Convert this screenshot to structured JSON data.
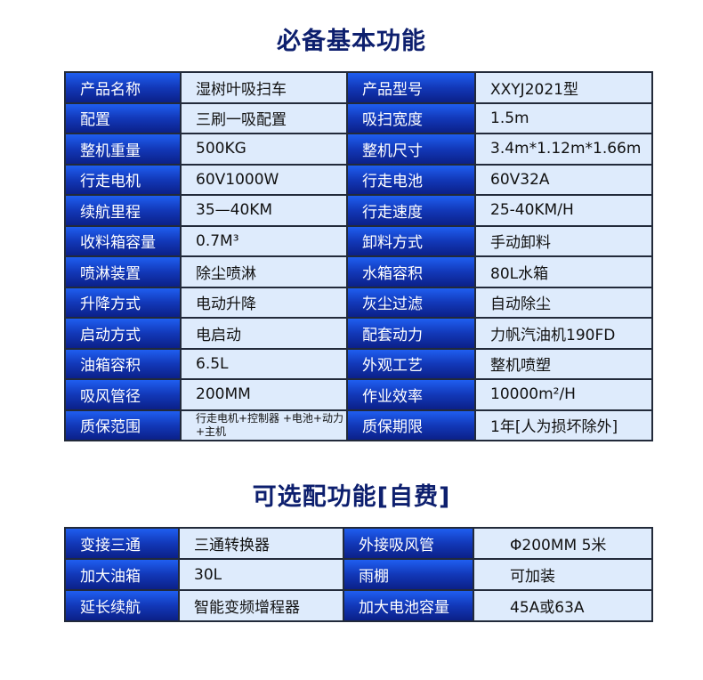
{
  "basic": {
    "title": "必备基本功能",
    "rows": [
      [
        "产品名称",
        "湿树叶吸扫车",
        "产品型号",
        "XXYJ2021型"
      ],
      [
        "配置",
        "三刷一吸配置",
        "吸扫宽度",
        "1.5m"
      ],
      [
        "整机重量",
        "500KG",
        "整机尺寸",
        "3.4m*1.12m*1.66m"
      ],
      [
        "行走电机",
        "60V1000W",
        "行走电池",
        "60V32A"
      ],
      [
        "续航里程",
        "35—40KM",
        "行走速度",
        "25-40KM/H"
      ],
      [
        "收料箱容量",
        "0.7M³",
        "卸料方式",
        "手动卸料"
      ],
      [
        "喷淋装置",
        "除尘喷淋",
        "水箱容积",
        "80L水箱"
      ],
      [
        "升降方式",
        "电动升降",
        "灰尘过滤",
        "自动除尘"
      ],
      [
        "启动方式",
        "电启动",
        "配套动力",
        "力帆汽油机190FD"
      ],
      [
        "油箱容积",
        "6.5L",
        "外观工艺",
        "整机喷塑"
      ],
      [
        "吸风管径",
        "200MM",
        "作业效率",
        "10000m²/H"
      ],
      [
        "质保范围",
        "行走电机+控制器 +电池+动力+主机",
        "质保期限",
        "1年[人为损坏除外]"
      ]
    ]
  },
  "optional": {
    "title": "可选配功能[自费]",
    "rows": [
      [
        "变接三通",
        "三通转换器",
        "外接吸风管",
        "Φ200MM 5米"
      ],
      [
        "加大油箱",
        "30L",
        "雨棚",
        "可加装"
      ],
      [
        "延长续航",
        "智能变频增程器",
        "加大电池容量",
        "45A或63A"
      ]
    ]
  },
  "colors": {
    "title": "#0d1f6e",
    "label_bg": "#1238b8",
    "value_bg": "#deebfc"
  }
}
